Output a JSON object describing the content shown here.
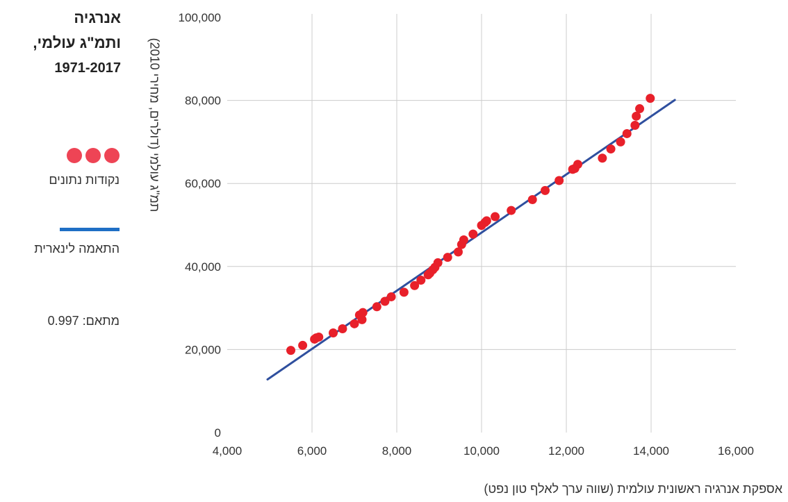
{
  "title": {
    "line1": "אנרגיה",
    "line2": "ותמ\"ג עולמי,",
    "line3": "1971-2017"
  },
  "legend": {
    "points_label": "נקודות נתונים",
    "fit_label": "התאמה לינארית",
    "r2_label": "מתאם: 0.997"
  },
  "colors": {
    "points": "#e8202a",
    "fit": "#2f4f9e",
    "grid": "#cccccc",
    "legend_line": "#1f6fc5"
  },
  "chart_data": {
    "type": "scatter",
    "title": "אנרגיה ותמ\"ג עולמי, 1971-2017",
    "xlabel": "אספקת אנרגיה ראשונית עולמית (שווה ערך לאלף טון נפט)",
    "ylabel": "תמ\"ג עולמי (דולרים, מחירי 2010)",
    "xlim": [
      4000,
      16000
    ],
    "ylim": [
      0,
      100000
    ],
    "x_ticks": [
      4000,
      6000,
      8000,
      10000,
      12000,
      14000,
      16000
    ],
    "y_ticks": [
      0,
      20000,
      40000,
      60000,
      80000,
      100000
    ],
    "x_tick_labels": [
      "4,000",
      "6,000",
      "8,000",
      "10,000",
      "12,000",
      "14,000",
      "16,000"
    ],
    "y_tick_labels": [
      "0",
      "20,000",
      "40,000",
      "60,000",
      "80,000",
      "100,000"
    ],
    "grid": "vertical-and-horizontal",
    "series": [
      {
        "name": "נקודות נתונים",
        "points": [
          [
            5500,
            19800
          ],
          [
            5780,
            21000
          ],
          [
            6060,
            22500
          ],
          [
            6100,
            22800
          ],
          [
            6160,
            23000
          ],
          [
            6500,
            24000
          ],
          [
            6720,
            25000
          ],
          [
            7000,
            26200
          ],
          [
            7120,
            28300
          ],
          [
            7180,
            27200
          ],
          [
            7200,
            28900
          ],
          [
            7530,
            30300
          ],
          [
            7720,
            31600
          ],
          [
            7870,
            32700
          ],
          [
            8170,
            33800
          ],
          [
            8420,
            35400
          ],
          [
            8570,
            36700
          ],
          [
            8740,
            38000
          ],
          [
            8780,
            38400
          ],
          [
            8850,
            39200
          ],
          [
            8900,
            39800
          ],
          [
            8970,
            40900
          ],
          [
            9200,
            42200
          ],
          [
            9450,
            43500
          ],
          [
            9530,
            45300
          ],
          [
            9580,
            46400
          ],
          [
            9800,
            47800
          ],
          [
            10000,
            49900
          ],
          [
            10080,
            50600
          ],
          [
            10120,
            51000
          ],
          [
            10320,
            52000
          ],
          [
            10700,
            53500
          ],
          [
            11200,
            56100
          ],
          [
            11500,
            58300
          ],
          [
            11830,
            60700
          ],
          [
            12150,
            63400
          ],
          [
            12200,
            63600
          ],
          [
            12270,
            64600
          ],
          [
            12850,
            66100
          ],
          [
            13050,
            68300
          ],
          [
            13280,
            70000
          ],
          [
            13430,
            72000
          ],
          [
            13620,
            74000
          ],
          [
            13650,
            76200
          ],
          [
            13730,
            78000
          ],
          [
            13980,
            80500
          ]
        ]
      },
      {
        "name": "התאמה לינארית",
        "type": "line",
        "points": [
          [
            4950,
            12800
          ],
          [
            14560,
            80100
          ]
        ]
      }
    ]
  }
}
